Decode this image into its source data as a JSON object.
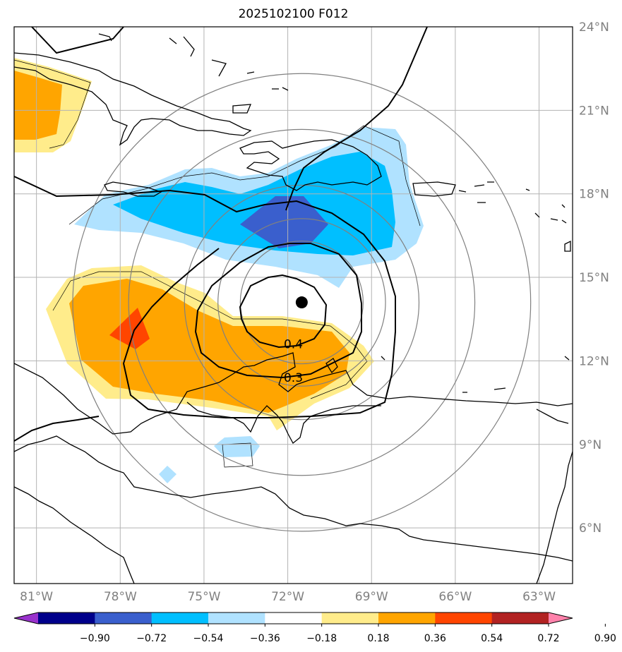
{
  "title": "2025102100 F012",
  "map": {
    "lon_range": [
      -81.8,
      -61.8
    ],
    "lat_range": [
      4.0,
      24.0
    ],
    "lon_ticks": [
      {
        "value": -81,
        "label": "81°W"
      },
      {
        "value": -78,
        "label": "78°W"
      },
      {
        "value": -75,
        "label": "75°W"
      },
      {
        "value": -72,
        "label": "72°W"
      },
      {
        "value": -69,
        "label": "69°W"
      },
      {
        "value": -66,
        "label": "66°W"
      },
      {
        "value": -63,
        "label": "63°W"
      }
    ],
    "lat_ticks": [
      {
        "value": 24,
        "label": "24°N"
      },
      {
        "value": 21,
        "label": "21°N"
      },
      {
        "value": 18,
        "label": "18°N"
      },
      {
        "value": 15,
        "label": "15°N"
      },
      {
        "value": 12,
        "label": "12°N"
      },
      {
        "value": 9,
        "label": "9°N"
      },
      {
        "value": 6,
        "label": "6°N"
      }
    ],
    "storm_center": {
      "lon": -71.5,
      "lat": 14.1
    },
    "range_rings_deg": [
      2.2,
      3.0,
      4.2,
      6.2,
      8.2
    ],
    "contour_labels": [
      {
        "text": "0.4",
        "lon": -71.8,
        "lat": 12.6
      },
      {
        "text": "0.3",
        "lon": -71.8,
        "lat": 11.4
      }
    ]
  },
  "colorbar": {
    "colors": [
      "#9932cc",
      "#00008b",
      "#3a5fcd",
      "#00bfff",
      "#b0e2ff",
      "#ffffff",
      "#ffec8b",
      "#ffa500",
      "#ff4500",
      "#b22222",
      "#ff82ab"
    ],
    "tick_labels": [
      "−0.90",
      "−0.72",
      "−0.54",
      "−0.36",
      "−0.18",
      "0.18",
      "0.36",
      "0.54",
      "0.72",
      "0.90"
    ]
  },
  "colors": {
    "ocean": "#ffffff",
    "grid": "#b3b3b3",
    "tick_text": "#808080",
    "ring": "#808080",
    "coast": "#000000"
  }
}
